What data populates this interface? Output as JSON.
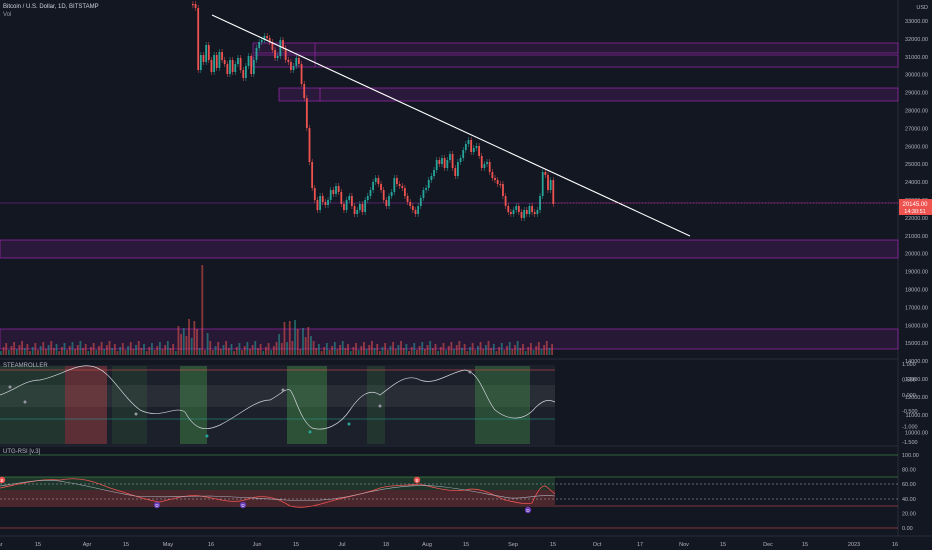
{
  "header": {
    "symbol_title": "Bitcoin / U.S. Dollar, 1D, BITSTAMP",
    "volume_label": "Vol"
  },
  "indicators": {
    "steamroller": "STEAMROLLER",
    "rsi": "UTG-RSI [v.3]"
  },
  "price_axis": {
    "ticks": [
      "33000.00",
      "32000.00",
      "31000.00",
      "30000.00",
      "29000.00",
      "28000.00",
      "27000.00",
      "26000.00",
      "25000.00",
      "24000.00",
      "23000.00",
      "22000.00",
      "21000.00",
      "20000.00",
      "19000.00",
      "18000.00",
      "17000.00",
      "16000.00",
      "15000.00",
      "14000.00",
      "13000.00",
      "12000.00",
      "11000.00",
      "10000.00"
    ],
    "current_price": "20145.00",
    "countdown": "14:30:51",
    "currency": "USD"
  },
  "steamroller_axis": {
    "ticks": [
      "1.000",
      "0.500",
      "0.000",
      "-0.500",
      "-1.000",
      "-1.500"
    ]
  },
  "rsi_axis": {
    "ticks": [
      "100.00",
      "80.00",
      "60.00",
      "40.00",
      "20.00",
      "0.00"
    ]
  },
  "time_axis": {
    "labels": [
      "ar",
      "15",
      "Apr",
      "15",
      "May",
      "16",
      "Jun",
      "15",
      "Jul",
      "18",
      "Aug",
      "15",
      "Sep",
      "15",
      "Oct",
      "17",
      "Nov",
      "15",
      "Dec",
      "15",
      "2023",
      "16"
    ]
  },
  "colors": {
    "background": "#131722",
    "bull": "#26a69a",
    "bear": "#ef5350",
    "zone": "#9c27b0",
    "trendline": "#ffffff"
  },
  "rsi_signals": [
    "B",
    "D",
    "D",
    "B",
    "D"
  ]
}
